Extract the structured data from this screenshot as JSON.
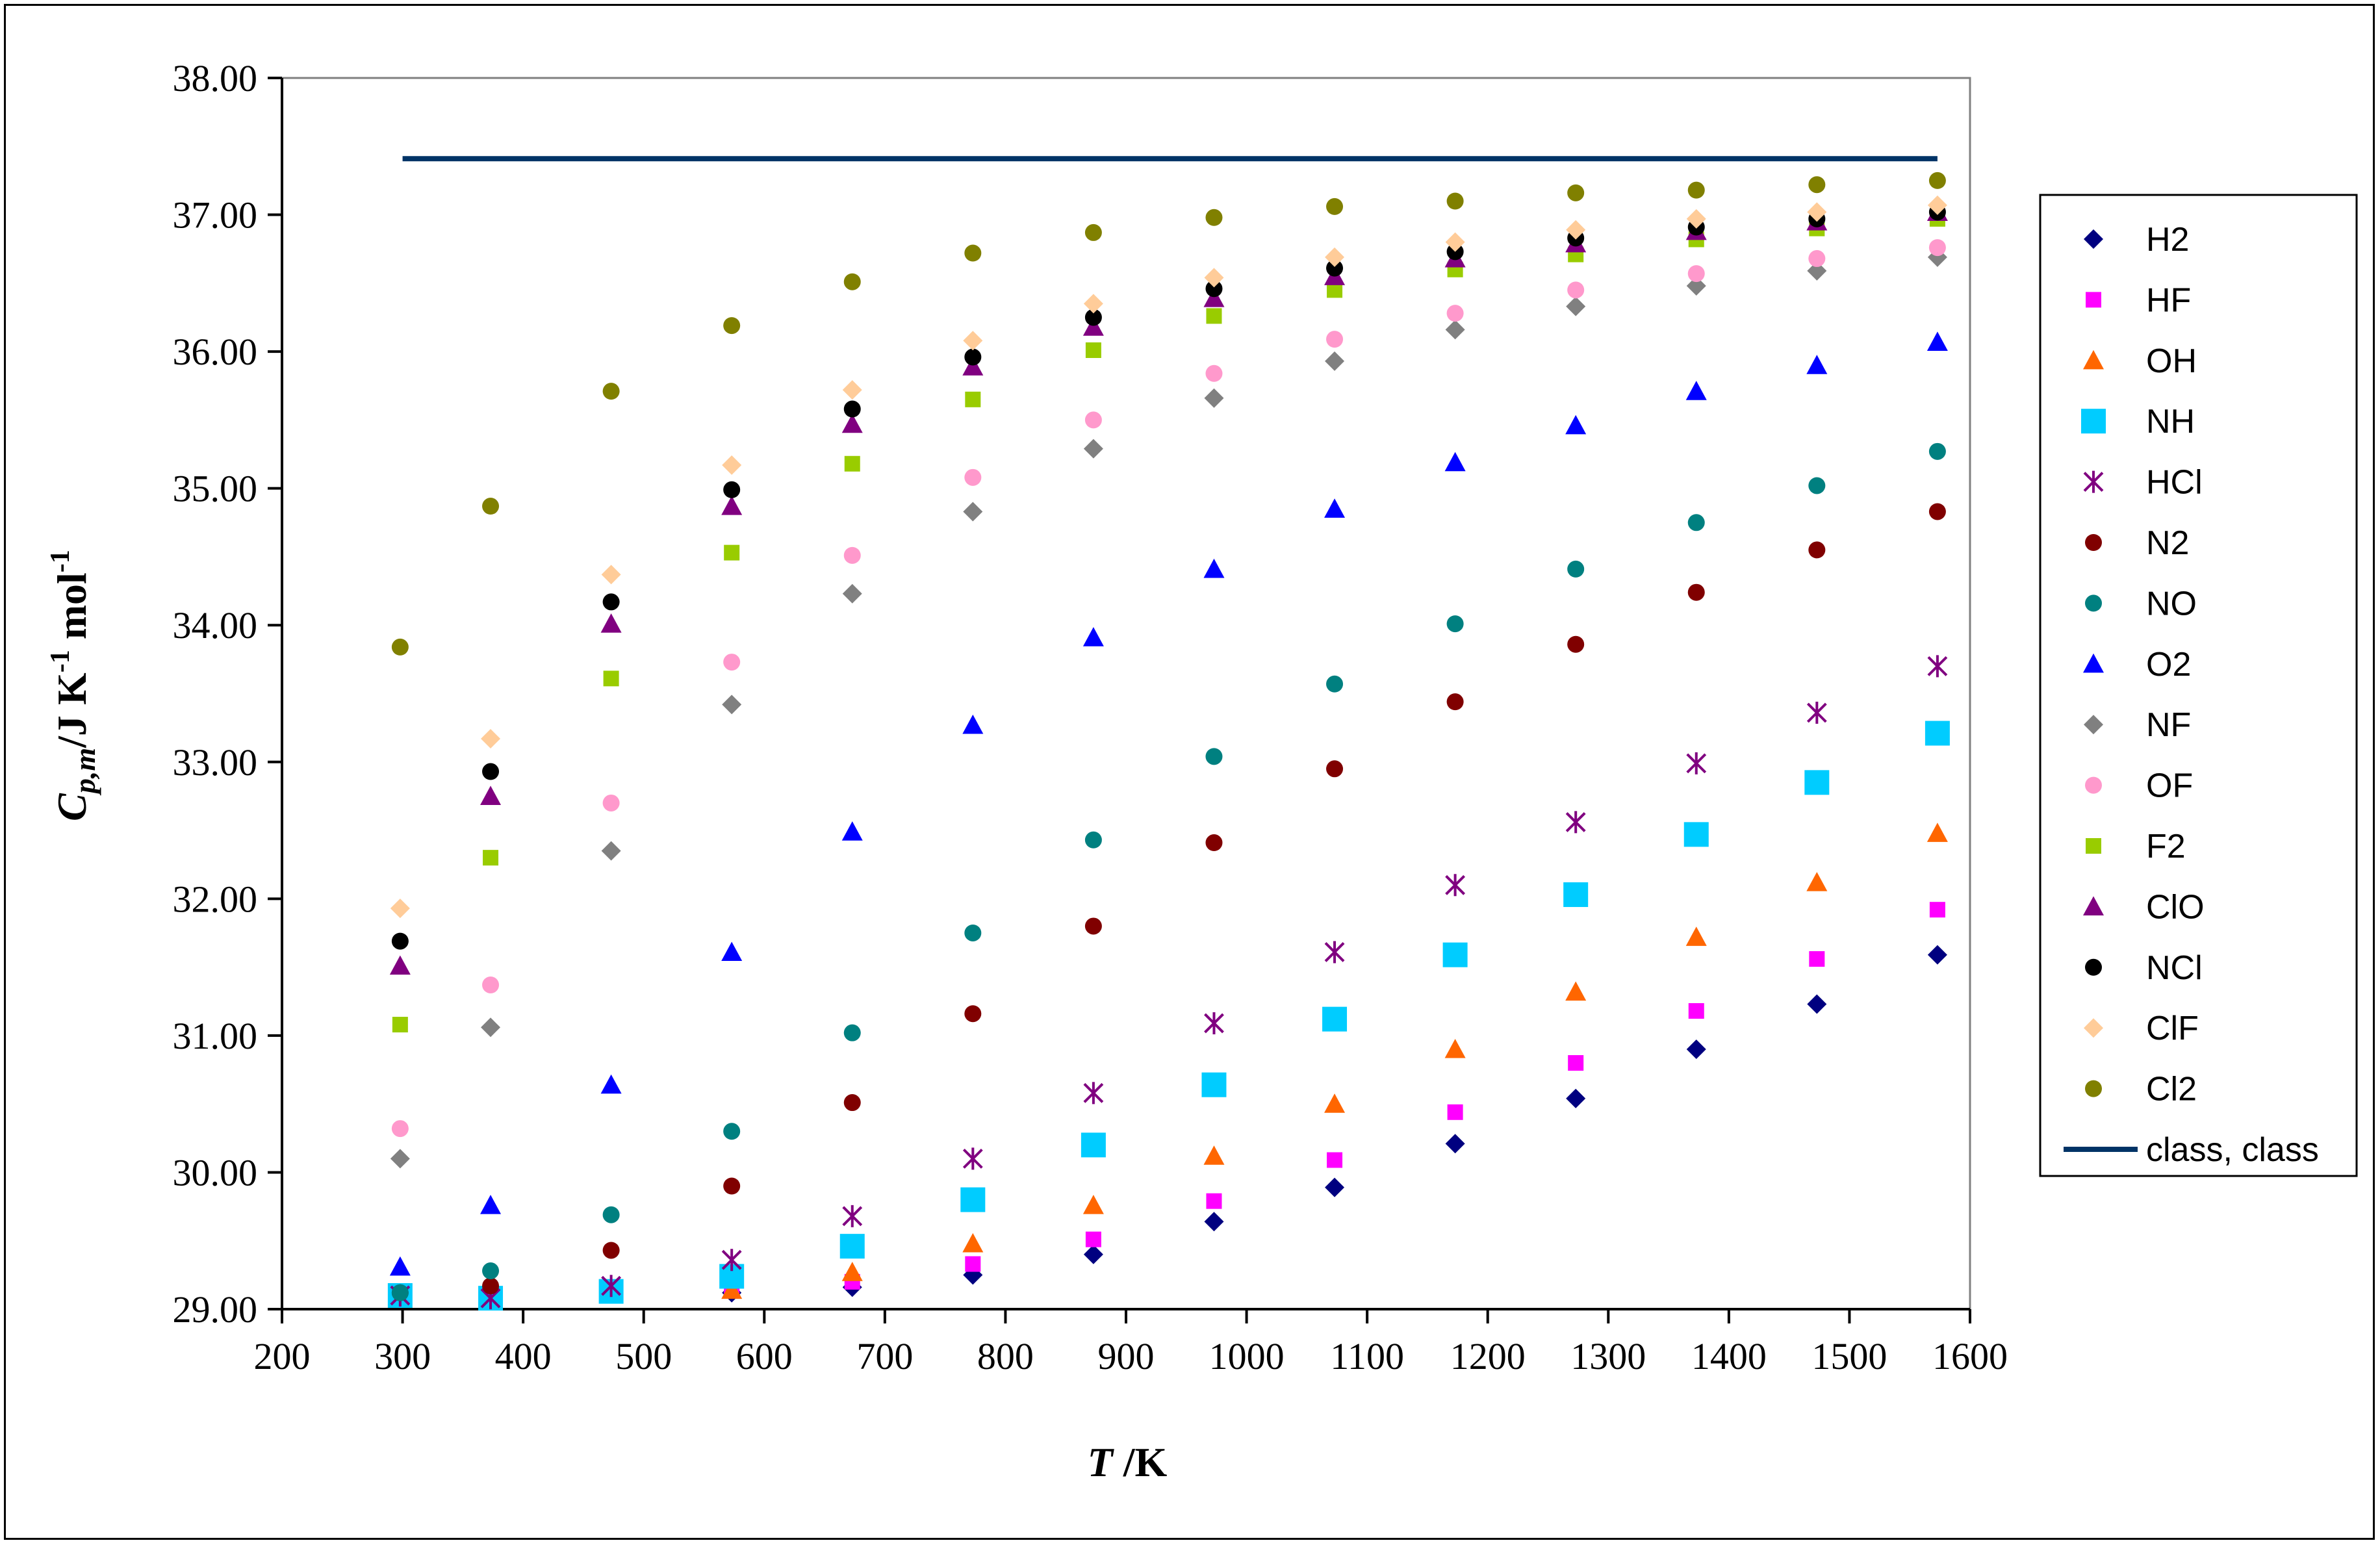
{
  "chart_data": {
    "type": "scatter",
    "title": "",
    "xlabel": "T /K",
    "ylabel": "Cp,m/J K-1 mol-1",
    "xlim": [
      200,
      1600
    ],
    "ylim": [
      29.0,
      38.0
    ],
    "x_ticks": [
      "200",
      "300",
      "400",
      "500",
      "600",
      "700",
      "800",
      "900",
      "1000",
      "1100",
      "1200",
      "1300",
      "1400",
      "1500",
      "1600"
    ],
    "y_ticks": [
      "29.00",
      "30.00",
      "31.00",
      "32.00",
      "33.00",
      "34.00",
      "35.00",
      "36.00",
      "37.00",
      "38.00"
    ],
    "grid": false,
    "legend_position": "right",
    "x": [
      298,
      373,
      473,
      573,
      673,
      773,
      873,
      973,
      1073,
      1173,
      1273,
      1373,
      1473,
      1573
    ],
    "series": [
      {
        "name": "H2",
        "color": "#000080",
        "marker": "diamond",
        "values": [
          29.1,
          29.08,
          29.12,
          29.12,
          29.16,
          29.25,
          29.4,
          29.64,
          29.89,
          30.21,
          30.54,
          30.9,
          31.23,
          31.59
        ]
      },
      {
        "name": "HF",
        "color": "#FF00FF",
        "marker": "square",
        "values": [
          29.1,
          29.1,
          29.12,
          29.14,
          29.2,
          29.33,
          29.51,
          29.79,
          30.09,
          30.44,
          30.8,
          31.18,
          31.56,
          31.92
        ]
      },
      {
        "name": "OH",
        "color": "#FF6600",
        "marker": "triangle",
        "values": [
          29.1,
          29.08,
          29.12,
          29.14,
          29.27,
          29.48,
          29.76,
          30.12,
          30.5,
          30.9,
          31.32,
          31.72,
          32.12,
          32.48
        ]
      },
      {
        "name": "NH",
        "color": "#00CCFF",
        "marker": "square-large",
        "values": [
          29.1,
          29.08,
          29.13,
          29.24,
          29.46,
          29.8,
          30.2,
          30.64,
          31.12,
          31.59,
          32.03,
          32.47,
          32.85,
          33.21
        ]
      },
      {
        "name": "HCl",
        "color": "#800080",
        "marker": "asterisk",
        "values": [
          29.1,
          29.08,
          29.17,
          29.36,
          29.68,
          30.1,
          30.58,
          31.09,
          31.61,
          32.1,
          32.56,
          32.99,
          33.36,
          33.7
        ]
      },
      {
        "name": "N2",
        "color": "#800000",
        "marker": "circle",
        "values": [
          29.12,
          29.17,
          29.43,
          29.9,
          30.51,
          31.16,
          31.8,
          32.41,
          32.95,
          33.44,
          33.86,
          34.24,
          34.55,
          34.83
        ]
      },
      {
        "name": "NO",
        "color": "#008080",
        "marker": "circle",
        "values": [
          29.12,
          29.28,
          29.69,
          30.3,
          31.02,
          31.75,
          32.43,
          33.04,
          33.57,
          34.01,
          34.41,
          34.75,
          35.02,
          35.27
        ]
      },
      {
        "name": "O2",
        "color": "#0000FF",
        "marker": "triangle",
        "values": [
          29.31,
          29.76,
          30.64,
          31.61,
          32.49,
          33.27,
          33.91,
          34.41,
          34.85,
          35.19,
          35.46,
          35.71,
          35.9,
          36.07
        ]
      },
      {
        "name": "NF",
        "color": "#808080",
        "marker": "diamond",
        "values": [
          30.1,
          31.06,
          32.35,
          33.42,
          34.23,
          34.83,
          35.29,
          35.66,
          35.93,
          36.16,
          36.33,
          36.48,
          36.59,
          36.69
        ]
      },
      {
        "name": "OF",
        "color": "#FF99CC",
        "marker": "circle",
        "values": [
          30.32,
          31.37,
          32.7,
          33.73,
          34.51,
          35.08,
          35.5,
          35.84,
          36.09,
          36.28,
          36.45,
          36.57,
          36.68,
          36.76
        ]
      },
      {
        "name": "F2",
        "color": "#99CC00",
        "marker": "square",
        "values": [
          31.08,
          32.3,
          33.61,
          34.53,
          35.18,
          35.65,
          36.01,
          36.26,
          36.45,
          36.6,
          36.71,
          36.82,
          36.9,
          36.97
        ]
      },
      {
        "name": "ClO",
        "color": "#800080",
        "marker": "triangle",
        "values": [
          31.51,
          32.75,
          34.01,
          34.87,
          35.47,
          35.89,
          36.18,
          36.39,
          36.55,
          36.68,
          36.79,
          36.88,
          36.95,
          37.02
        ]
      },
      {
        "name": "NCl",
        "color": "#000000",
        "marker": "circle",
        "values": [
          31.69,
          32.93,
          34.17,
          34.99,
          35.58,
          35.96,
          36.25,
          36.46,
          36.61,
          36.73,
          36.83,
          36.91,
          36.97,
          37.02
        ]
      },
      {
        "name": "ClF",
        "color": "#FFCC99",
        "marker": "diamond",
        "values": [
          31.93,
          33.17,
          34.37,
          35.17,
          35.72,
          36.08,
          36.35,
          36.54,
          36.69,
          36.8,
          36.89,
          36.97,
          37.02,
          37.07
        ]
      },
      {
        "name": "Cl2",
        "color": "#808000",
        "marker": "circle",
        "values": [
          33.84,
          34.87,
          35.71,
          36.19,
          36.51,
          36.72,
          36.87,
          36.98,
          37.06,
          37.1,
          37.16,
          37.18,
          37.22,
          37.25
        ]
      }
    ],
    "line_series": [
      {
        "name": "class, class",
        "color": "#003366",
        "x": [
          300,
          1573
        ],
        "values": [
          37.41,
          37.41
        ]
      }
    ]
  }
}
